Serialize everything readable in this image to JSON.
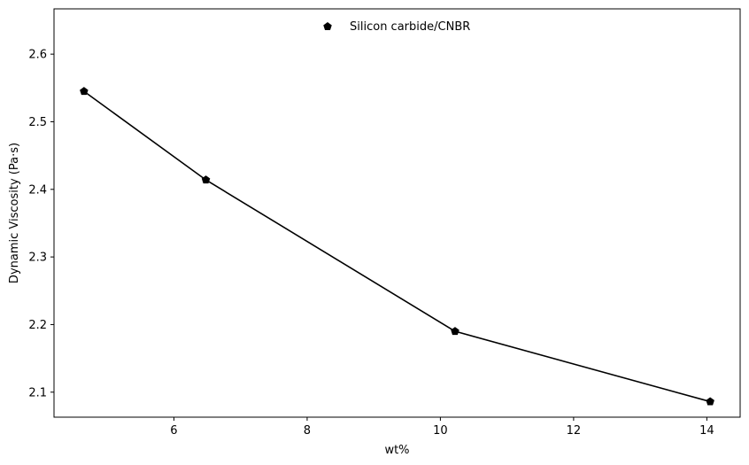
{
  "chart_data": {
    "type": "line",
    "title": "",
    "xlabel": "wt%",
    "ylabel": "Dynamic Viscosity (Pa·s)",
    "xlim": [
      4.2,
      14.5
    ],
    "ylim": [
      2.063,
      2.667
    ],
    "x_ticks": [
      6,
      8,
      10,
      12,
      14
    ],
    "x_tick_labels": [
      "6",
      "8",
      "10",
      "12",
      "14"
    ],
    "y_ticks": [
      2.1,
      2.2,
      2.3,
      2.4,
      2.5,
      2.6
    ],
    "y_tick_labels": [
      "2.1",
      "2.2",
      "2.3",
      "2.4",
      "2.5",
      "2.6"
    ],
    "grid": false,
    "legend_position": "upper-center",
    "series": [
      {
        "name": "Silicon carbide/CNBR",
        "marker": "pentagon",
        "color": "#000000",
        "x": [
          4.65,
          6.48,
          10.22,
          14.05
        ],
        "y": [
          2.545,
          2.414,
          2.19,
          2.086
        ]
      }
    ]
  }
}
